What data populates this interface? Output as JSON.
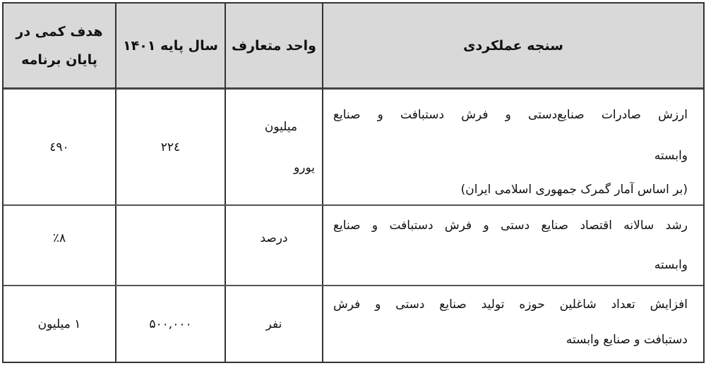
{
  "header": {
    "metric": "سنجه عملکردی",
    "unit": "واحد متعارف",
    "base_year": "سال پایه ۱۴۰۱",
    "target_line1": "هدف کمی در",
    "target_line2": "پایان برنامه"
  },
  "rows": [
    {
      "metric_line1": "ارزش صادرات صنایع‌دستی و فرش دستبافت و صنایع",
      "metric_line2": "وابسته",
      "metric_note": "(بر اساس آمار گمرک جمهوری اسلامی ایران)",
      "unit_line1": "میلیون",
      "unit_line2": "یورو",
      "base_year": "۲۲٤",
      "target": "٤۹۰"
    },
    {
      "metric_line1": "رشد سالانه اقتصاد صنایع دستی و فرش دستبافت و صنایع",
      "metric_line2": "وابسته",
      "unit": "درصد",
      "base_year": "",
      "target": "٪۸"
    },
    {
      "metric_line1": "افزایش تعداد شاغلین حوزه تولید صنایع دستی و فرش",
      "metric_line2": "دستبافت و صنایع وابسته",
      "unit": "نفر",
      "base_year": "۵۰۰,۰۰۰",
      "target": "۱ میلیون"
    }
  ]
}
